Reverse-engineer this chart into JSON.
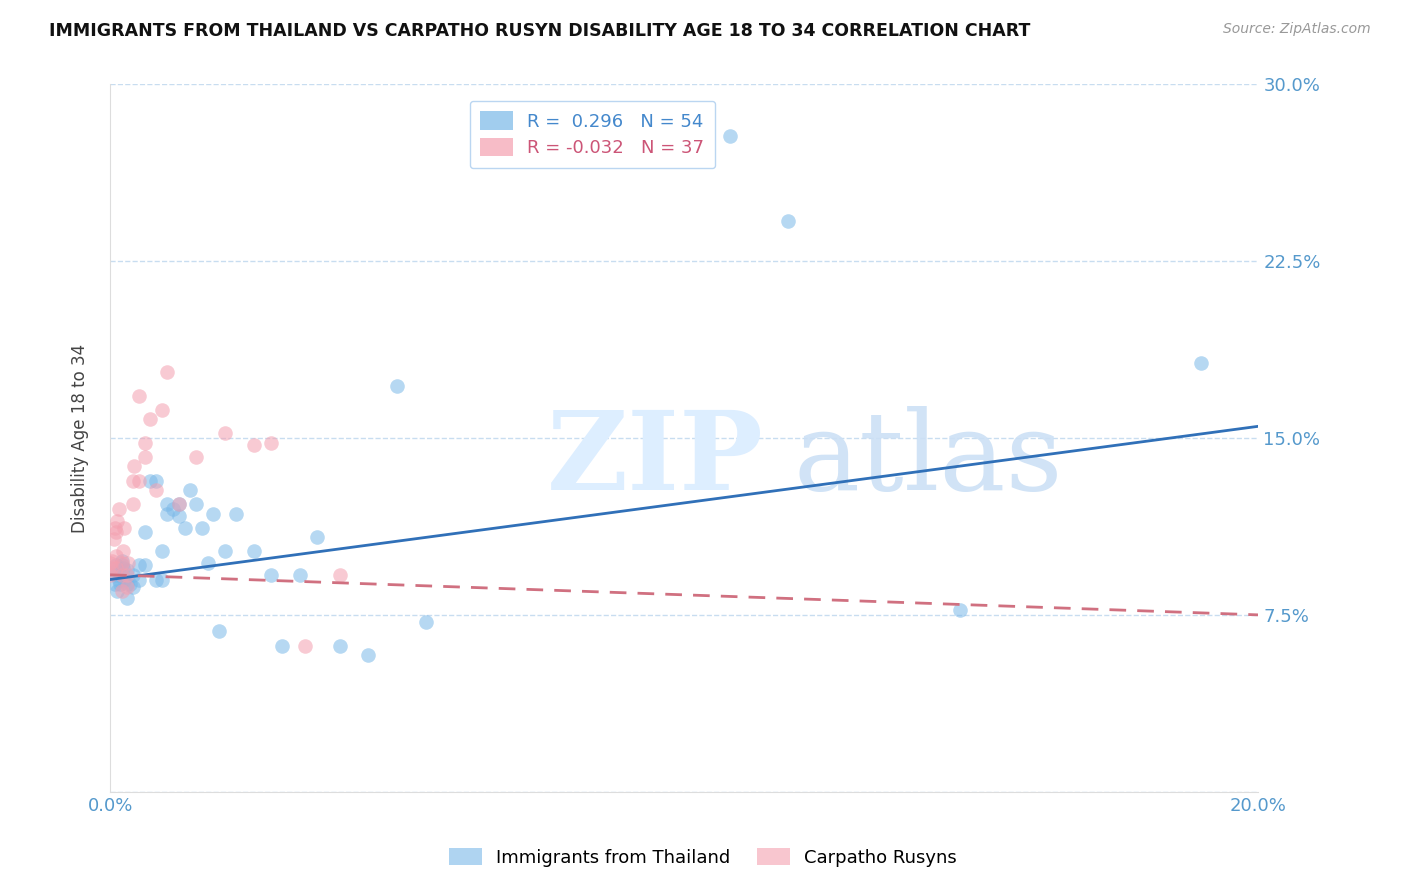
{
  "title": "IMMIGRANTS FROM THAILAND VS CARPATHO RUSYN DISABILITY AGE 18 TO 34 CORRELATION CHART",
  "source": "Source: ZipAtlas.com",
  "ylabel": "Disability Age 18 to 34",
  "xlim": [
    0.0,
    0.2
  ],
  "ylim": [
    0.0,
    0.3
  ],
  "xticks": [
    0.0,
    0.04,
    0.08,
    0.12,
    0.16,
    0.2
  ],
  "xticklabels": [
    "0.0%",
    "",
    "",
    "",
    "",
    "20.0%"
  ],
  "yticks": [
    0.0,
    0.075,
    0.15,
    0.225,
    0.3
  ],
  "yticklabels": [
    "",
    "7.5%",
    "15.0%",
    "22.5%",
    "30.0%"
  ],
  "legend_R1": " 0.296",
  "legend_N1": "54",
  "legend_R2": "-0.032",
  "legend_N2": "37",
  "series1_color": "#7ab8e8",
  "series2_color": "#f4a0b0",
  "series1_label": "Immigrants from Thailand",
  "series2_label": "Carpatho Rusyns",
  "line1_color": "#3070b8",
  "line2_color": "#d07080",
  "thailand_x": [
    0.0005,
    0.0008,
    0.001,
    0.001,
    0.0012,
    0.0015,
    0.0018,
    0.002,
    0.002,
    0.002,
    0.0022,
    0.0025,
    0.003,
    0.003,
    0.003,
    0.0035,
    0.004,
    0.004,
    0.005,
    0.005,
    0.006,
    0.006,
    0.007,
    0.008,
    0.008,
    0.009,
    0.009,
    0.01,
    0.01,
    0.011,
    0.012,
    0.012,
    0.013,
    0.014,
    0.015,
    0.016,
    0.017,
    0.018,
    0.019,
    0.02,
    0.022,
    0.025,
    0.028,
    0.03,
    0.033,
    0.036,
    0.04,
    0.045,
    0.05,
    0.055,
    0.108,
    0.118,
    0.148,
    0.19
  ],
  "thailand_y": [
    0.093,
    0.088,
    0.092,
    0.096,
    0.085,
    0.09,
    0.088,
    0.092,
    0.096,
    0.098,
    0.095,
    0.09,
    0.082,
    0.088,
    0.094,
    0.088,
    0.087,
    0.092,
    0.09,
    0.096,
    0.11,
    0.096,
    0.132,
    0.132,
    0.09,
    0.09,
    0.102,
    0.118,
    0.122,
    0.12,
    0.117,
    0.122,
    0.112,
    0.128,
    0.122,
    0.112,
    0.097,
    0.118,
    0.068,
    0.102,
    0.118,
    0.102,
    0.092,
    0.062,
    0.092,
    0.108,
    0.062,
    0.058,
    0.172,
    0.072,
    0.278,
    0.242,
    0.077,
    0.182
  ],
  "rusyn_x": [
    0.0,
    0.0,
    0.0002,
    0.0004,
    0.0006,
    0.0008,
    0.001,
    0.001,
    0.001,
    0.0012,
    0.0015,
    0.002,
    0.002,
    0.002,
    0.0022,
    0.0025,
    0.003,
    0.003,
    0.0032,
    0.004,
    0.004,
    0.0042,
    0.005,
    0.005,
    0.006,
    0.006,
    0.007,
    0.008,
    0.009,
    0.01,
    0.012,
    0.015,
    0.02,
    0.025,
    0.028,
    0.034,
    0.04
  ],
  "rusyn_y": [
    0.092,
    0.097,
    0.095,
    0.098,
    0.107,
    0.112,
    0.095,
    0.1,
    0.11,
    0.115,
    0.12,
    0.085,
    0.092,
    0.097,
    0.102,
    0.112,
    0.087,
    0.092,
    0.097,
    0.122,
    0.132,
    0.138,
    0.168,
    0.132,
    0.148,
    0.142,
    0.158,
    0.128,
    0.162,
    0.178,
    0.122,
    0.142,
    0.152,
    0.147,
    0.148,
    0.062,
    0.092
  ]
}
